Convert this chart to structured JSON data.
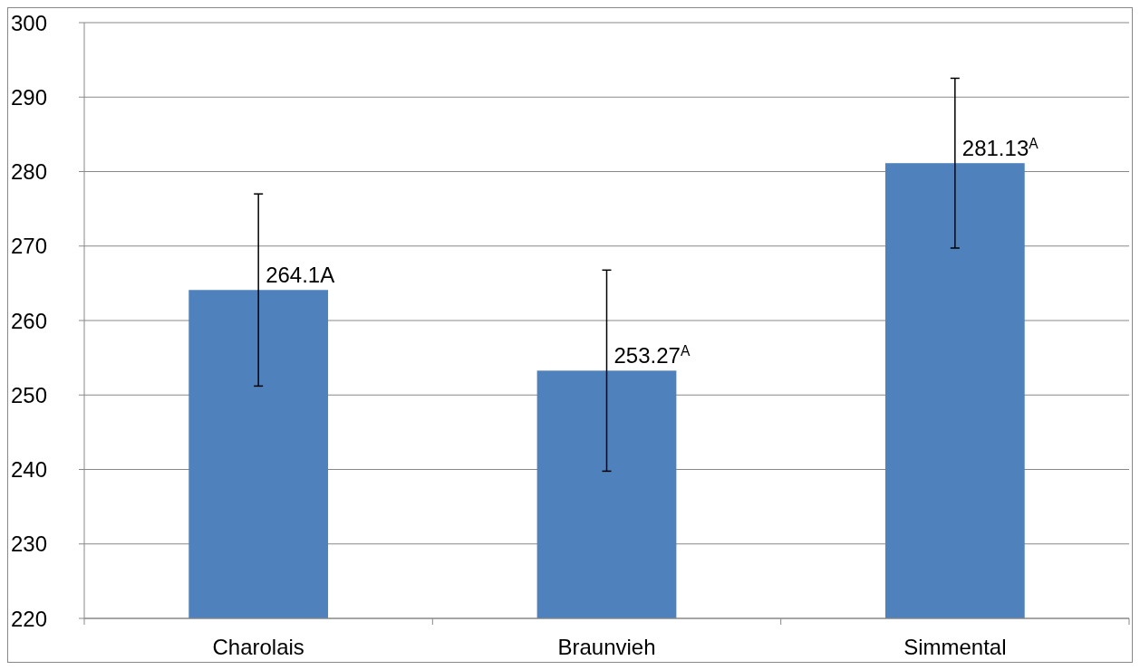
{
  "chart_data": {
    "type": "bar",
    "categories": [
      "Charolais",
      "Braunvieh",
      "Simmental"
    ],
    "values": [
      264.1,
      253.27,
      281.13
    ],
    "color": "#4f81bd",
    "errors": [
      12.9,
      13.5,
      11.4
    ],
    "value_labels": [
      "264.1A",
      "253.27$^{A}$",
      "281.13$^{A}$"
    ],
    "ylim": [
      220,
      300
    ],
    "yticks": [
      220,
      230,
      240,
      250,
      260,
      270,
      280,
      290,
      300
    ],
    "grid": "y"
  }
}
